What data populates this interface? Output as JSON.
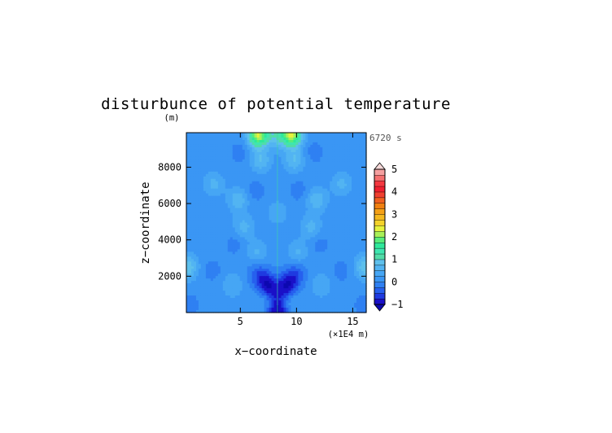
{
  "chart_data": {
    "type": "heatmap",
    "title": "disturbunce of potential temperature",
    "ylabel": "z−coordinate",
    "yunit": "(m)",
    "xlabel": "x−coordinate",
    "xunit": "(×1E4 m)",
    "time_label": "6720 s",
    "xlim": [
      0.2,
      16.2
    ],
    "ylim": [
      0,
      9900
    ],
    "x_ticks": [
      {
        "value": 5,
        "label": "5"
      },
      {
        "value": 10,
        "label": "10"
      },
      {
        "value": 15,
        "label": "15"
      }
    ],
    "y_ticks": [
      {
        "value": 2000,
        "label": "2000"
      },
      {
        "value": 4000,
        "label": "4000"
      },
      {
        "value": 6000,
        "label": "6000"
      },
      {
        "value": 8000,
        "label": "8000"
      }
    ],
    "colorbar": {
      "min": -1,
      "max": 5,
      "step": 0.25,
      "tick_labels": [
        {
          "value": -1,
          "label": "−1"
        },
        {
          "value": 0,
          "label": "0"
        },
        {
          "value": 1,
          "label": "1"
        },
        {
          "value": 2,
          "label": "2"
        },
        {
          "value": 3,
          "label": "3"
        },
        {
          "value": 4,
          "label": "4"
        },
        {
          "value": 5,
          "label": "5"
        }
      ],
      "colors": [
        "#1a10c8",
        "#1f3ae0",
        "#2660ee",
        "#2f80f2",
        "#3a96f4",
        "#46a6f4",
        "#52b4f2",
        "#5ec0ec",
        "#52dca8",
        "#3ee6b0",
        "#2ee89a",
        "#58ec7a",
        "#a8f058",
        "#e6f23c",
        "#f4d22a",
        "#f4b81e",
        "#f4a016",
        "#f08010",
        "#f06020",
        "#f04030",
        "#f02030",
        "#f43840",
        "#f47070",
        "#f4a0a0"
      ],
      "under_color": "#0c08b0",
      "over_color": "#f6d8d8"
    },
    "field": {
      "background": 0.1,
      "features": [
        {
          "x": 0.5,
          "z": 400,
          "value": -0.12
        },
        {
          "x": 16.0,
          "z": 400,
          "value": -0.12
        },
        {
          "x": 8.3,
          "z": 400,
          "value": -0.12
        },
        {
          "x": 2.5,
          "z": 2300,
          "value": -0.1
        },
        {
          "x": 14.0,
          "z": 2300,
          "value": -0.1
        },
        {
          "x": 4.5,
          "z": 3800,
          "value": -0.1
        },
        {
          "x": 12.0,
          "z": 3800,
          "value": -0.1
        },
        {
          "x": 6.5,
          "z": 2200,
          "value": -0.3
        },
        {
          "x": 10.0,
          "z": 2200,
          "value": -0.3
        },
        {
          "x": 7.2,
          "z": 1700,
          "value": -0.55
        },
        {
          "x": 9.4,
          "z": 1700,
          "value": -0.55
        },
        {
          "x": 7.6,
          "z": 1200,
          "value": -0.75
        },
        {
          "x": 9.0,
          "z": 1200,
          "value": -0.75
        },
        {
          "x": 8.3,
          "z": 100,
          "value": -0.9
        },
        {
          "x": 2.5,
          "z": 6800,
          "value": -0.1
        },
        {
          "x": 14.0,
          "z": 6800,
          "value": -0.1
        },
        {
          "x": 6.3,
          "z": 6700,
          "value": -0.12
        },
        {
          "x": 10.2,
          "z": 6700,
          "value": -0.12
        },
        {
          "x": 5.0,
          "z": 8800,
          "value": -0.12
        },
        {
          "x": 11.5,
          "z": 8800,
          "value": -0.12
        },
        {
          "x": 0.3,
          "z": 2500,
          "value": 0.95
        },
        {
          "x": 16.1,
          "z": 2500,
          "value": 0.95
        },
        {
          "x": 2.6,
          "z": 7000,
          "value": 0.75
        },
        {
          "x": 14.0,
          "z": 7000,
          "value": 0.75
        },
        {
          "x": 4.8,
          "z": 6200,
          "value": 0.7
        },
        {
          "x": 11.8,
          "z": 6200,
          "value": 0.7
        },
        {
          "x": 5.3,
          "z": 4700,
          "value": 0.6
        },
        {
          "x": 11.3,
          "z": 4700,
          "value": 0.6
        },
        {
          "x": 6.8,
          "z": 8400,
          "value": 0.75
        },
        {
          "x": 9.8,
          "z": 8400,
          "value": 0.75
        },
        {
          "x": 6.5,
          "z": 3300,
          "value": 0.55
        },
        {
          "x": 10.1,
          "z": 3300,
          "value": 0.55
        },
        {
          "x": 4.3,
          "z": 1500,
          "value": 0.5
        },
        {
          "x": 12.2,
          "z": 1500,
          "value": 0.5
        },
        {
          "x": 7.3,
          "z": 800,
          "value": 0.55
        },
        {
          "x": 9.3,
          "z": 800,
          "value": 0.55
        },
        {
          "x": 8.3,
          "z": 5500,
          "value": 0.45
        },
        {
          "x": 6.6,
          "z": 9800,
          "value": 2.3
        },
        {
          "x": 9.6,
          "z": 9800,
          "value": 2.3
        },
        {
          "x": 8.3,
          "z": 9700,
          "value": 0.8
        }
      ]
    }
  }
}
